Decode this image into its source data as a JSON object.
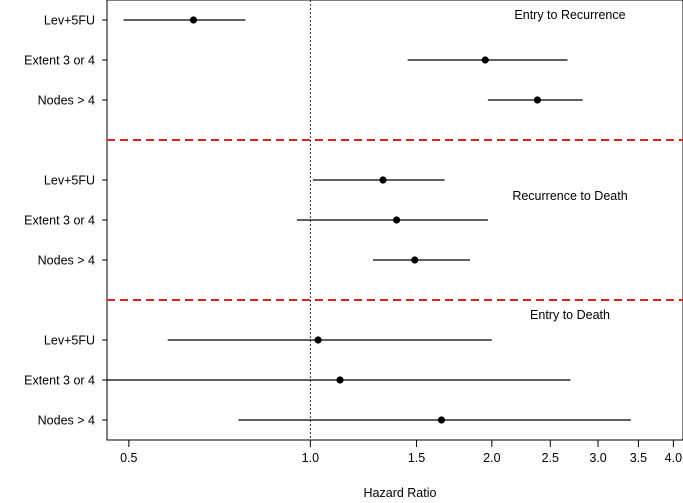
{
  "chart_data": {
    "type": "forest",
    "xlabel": "Hazard Ratio",
    "x_scale": "log",
    "xlim": [
      0.46,
      4.15
    ],
    "x_ticks": [
      0.5,
      1.0,
      1.5,
      2.0,
      2.5,
      3.0,
      3.5,
      4.0
    ],
    "x_tick_labels": [
      "0.5",
      "1.0",
      "1.5",
      "2.0",
      "2.5",
      "3.0",
      "3.5",
      "4.0"
    ],
    "reference_line": 1.0,
    "panels": [
      {
        "title": "Entry to Recurrence",
        "rows": [
          {
            "label": "Lev+5FU",
            "hr": 0.64,
            "lower": 0.49,
            "upper": 0.78
          },
          {
            "label": "Extent 3 or 4",
            "hr": 1.95,
            "lower": 1.45,
            "upper": 2.67
          },
          {
            "label": "Nodes > 4",
            "hr": 2.38,
            "lower": 1.97,
            "upper": 2.83
          }
        ]
      },
      {
        "title": "Recurrence to Death",
        "rows": [
          {
            "label": "Lev+5FU",
            "hr": 1.32,
            "lower": 1.01,
            "upper": 1.67
          },
          {
            "label": "Extent 3 or 4",
            "hr": 1.39,
            "lower": 0.95,
            "upper": 1.97
          },
          {
            "label": "Nodes > 4",
            "hr": 1.49,
            "lower": 1.27,
            "upper": 1.84
          }
        ]
      },
      {
        "title": "Entry to Death",
        "rows": [
          {
            "label": "Lev+5FU",
            "hr": 1.03,
            "lower": 0.58,
            "upper": 2.0
          },
          {
            "label": "Extent 3 or 4",
            "hr": 1.12,
            "lower": 0.46,
            "upper": 2.7
          },
          {
            "label": "Nodes > 4",
            "hr": 1.65,
            "lower": 0.76,
            "upper": 3.4
          }
        ]
      }
    ],
    "colors": {
      "separator": "#e0201c",
      "marks": "#000000"
    }
  }
}
